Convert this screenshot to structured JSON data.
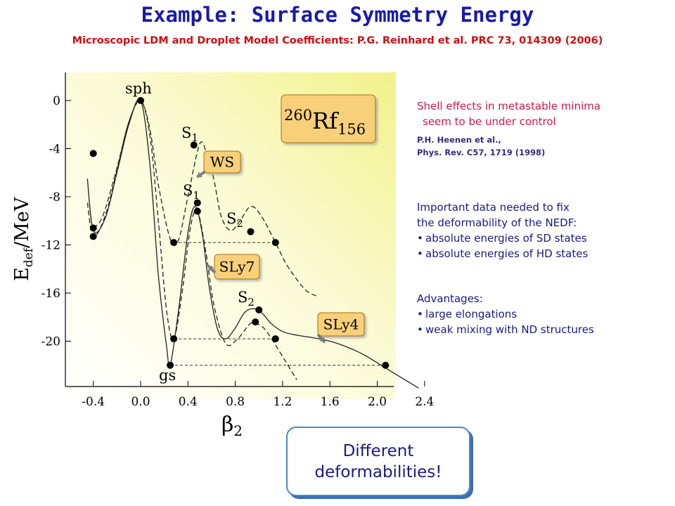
{
  "title": "Example: Surface Symmetry Energy",
  "subtitle": "Microscopic LDM and Droplet Model Coefficients: P.G. Reinhard et al. PRC 73, 014309 (2006)",
  "chart_data": {
    "type": "line",
    "xlabel": "β2",
    "ylabel": "Edef/MeV",
    "xlim": [
      -0.55,
      2.45
    ],
    "ylim": [
      -24,
      1.5
    ],
    "xticks": [
      "-0.4",
      "0.0",
      "0.4",
      "0.8",
      "1.2",
      "1.6",
      "2.0",
      "2.4"
    ],
    "yticks": [
      "0",
      "-4",
      "-8",
      "-12",
      "-16",
      "-20"
    ],
    "nucleus": {
      "mass": "260",
      "symbol": "Rf",
      "neutrons": "156"
    },
    "labels": {
      "sph": "sph",
      "gs": "gs",
      "s1a": "S",
      "s1a_sub": "1",
      "s1b": "S",
      "s1b_sub": "1",
      "s2a": "S",
      "s2a_sub": "2",
      "s2b": "S",
      "s2b_sub": "2"
    },
    "series": [
      {
        "name": "WS",
        "style": "dashed",
        "x": [
          -0.4,
          -0.32,
          -0.2,
          -0.1,
          0.0,
          0.08,
          0.15,
          0.25,
          0.32,
          0.4,
          0.5,
          0.56,
          0.62,
          0.68,
          0.76,
          0.84,
          0.93,
          1.02,
          1.14,
          1.22,
          1.3,
          1.4,
          1.5
        ],
        "y": [
          -10.6,
          -9.6,
          -5.6,
          -1.8,
          0.0,
          -2.5,
          -7.0,
          -11.5,
          -11.6,
          -8.0,
          -3.6,
          -4.5,
          -6.6,
          -9.6,
          -10.8,
          -10.0,
          -8.8,
          -9.6,
          -11.8,
          -13.4,
          -14.6,
          -15.8,
          -16.3
        ]
      },
      {
        "name": "SLy7",
        "style": "dashed",
        "x": [
          -0.45,
          -0.4,
          -0.3,
          -0.2,
          -0.1,
          0.0,
          0.08,
          0.15,
          0.22,
          0.28,
          0.35,
          0.42,
          0.48,
          0.55,
          0.62,
          0.72,
          0.82,
          0.92,
          0.97,
          1.04,
          1.12,
          1.22,
          1.32
        ],
        "y": [
          -8.5,
          -11.3,
          -9.6,
          -5.8,
          -1.8,
          0.0,
          -3.0,
          -10.0,
          -17.5,
          -19.8,
          -16.0,
          -10.6,
          -9.2,
          -12.5,
          -17.0,
          -20.2,
          -19.8,
          -18.6,
          -18.5,
          -18.9,
          -20.0,
          -21.6,
          -23.2
        ]
      },
      {
        "name": "SLy4",
        "style": "solid",
        "x": [
          -0.45,
          -0.4,
          -0.3,
          -0.2,
          -0.1,
          0.0,
          0.08,
          0.15,
          0.22,
          0.25,
          0.32,
          0.4,
          0.46,
          0.52,
          0.58,
          0.65,
          0.72,
          0.8,
          0.88,
          0.96,
          1.03,
          1.1,
          1.2,
          1.32,
          1.45,
          1.6,
          1.75,
          1.9,
          2.05,
          2.2,
          2.35
        ],
        "y": [
          -6.5,
          -10.8,
          -9.8,
          -6.0,
          -2.0,
          0.0,
          -5.5,
          -14.5,
          -20.5,
          -22.0,
          -17.5,
          -11.0,
          -8.8,
          -11.0,
          -15.5,
          -19.0,
          -19.8,
          -18.9,
          -17.6,
          -17.3,
          -17.7,
          -18.5,
          -19.2,
          -19.5,
          -19.7,
          -20.0,
          -20.5,
          -21.2,
          -22.1,
          -23.0,
          -23.9
        ]
      }
    ],
    "markers": [
      {
        "x": -0.4,
        "y": -4.4
      },
      {
        "x": 0.0,
        "y": 0.0
      },
      {
        "x": 0.45,
        "y": -3.7
      },
      {
        "x": -0.4,
        "y": -10.6
      },
      {
        "x": -0.4,
        "y": -11.3
      },
      {
        "x": 0.28,
        "y": -11.8
      },
      {
        "x": 0.48,
        "y": -8.5
      },
      {
        "x": 0.48,
        "y": -9.2
      },
      {
        "x": 0.93,
        "y": -10.9
      },
      {
        "x": 1.14,
        "y": -11.8
      },
      {
        "x": 0.28,
        "y": -19.8
      },
      {
        "x": 0.25,
        "y": -22.0
      },
      {
        "x": 1.0,
        "y": -17.4
      },
      {
        "x": 0.97,
        "y": -18.4
      },
      {
        "x": 1.14,
        "y": -19.8
      },
      {
        "x": 2.07,
        "y": -22.0
      }
    ],
    "reference_lines": [
      {
        "x1": 0.28,
        "x2": 1.14,
        "y": -11.8
      },
      {
        "x1": 0.28,
        "x2": 1.14,
        "y": -19.8
      },
      {
        "x1": 0.25,
        "x2": 2.07,
        "y": -22.0
      }
    ],
    "colors": {
      "plot_bg_yellow": "#f2f28a",
      "box_fill": "#f8d07a",
      "box_border": "#b06a10",
      "arrow": "#7d7d7d"
    }
  },
  "right_panel": {
    "shell_line1": "Shell effects in metastable minima",
    "shell_line2": "seem to be under control",
    "ref_line1": "P.H. Heenen et al.,",
    "ref_line2": "Phys. Rev. C57, 1719 (1998)",
    "important_line1": "Important data needed to fix",
    "important_line2": "the deformability of the NEDF:",
    "important_items": [
      "absolute energies of SD states",
      "absolute energies of HD states"
    ],
    "advantages_title": "Advantages:",
    "advantages_items": [
      "large elongations",
      "weak mixing with ND structures"
    ]
  },
  "callout": {
    "line1": "Different",
    "line2": "deformabilities!"
  }
}
